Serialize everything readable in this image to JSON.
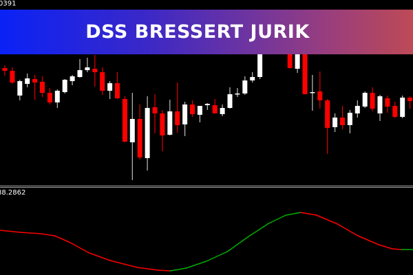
{
  "banner": {
    "title": "DSS BRESSERT JURIK"
  },
  "price_panel": {
    "top_label": "0391"
  },
  "indicator_panel": {
    "top_label": "88.2862"
  },
  "colors": {
    "bull_body": "#ffffff",
    "bear_body": "#ff0000",
    "bull_wick": "#c0c0c0",
    "bear_wick": "#e00000",
    "dss_up": "#00b000",
    "dss_down": "#ff0000",
    "background": "#000000"
  },
  "chart_data": [
    {
      "type": "candlestick",
      "title": "",
      "candles": [
        [
          201,
          205,
          190,
          197
        ],
        [
          197,
          202,
          178,
          180
        ],
        [
          161,
          184,
          154,
          182
        ],
        [
          178,
          193,
          173,
          186
        ],
        [
          185,
          191,
          155,
          180
        ],
        [
          181,
          189,
          159,
          165
        ],
        [
          165,
          172,
          148,
          151
        ],
        [
          151,
          170,
          143,
          168
        ],
        [
          166,
          185,
          164,
          184
        ],
        [
          182,
          191,
          176,
          189
        ],
        [
          188,
          214,
          187,
          198
        ],
        [
          198,
          216,
          195,
          202
        ],
        [
          200,
          220,
          174,
          195
        ],
        [
          195,
          202,
          162,
          168
        ],
        [
          168,
          182,
          156,
          179
        ],
        [
          179,
          195,
          156,
          157
        ],
        [
          156,
          160,
          93,
          94
        ],
        [
          93,
          165,
          38,
          127
        ],
        [
          127,
          148,
          68,
          71
        ],
        [
          70,
          160,
          52,
          143
        ],
        [
          144,
          163,
          106,
          135
        ],
        [
          135,
          140,
          80,
          103
        ],
        [
          104,
          155,
          103,
          138
        ],
        [
          138,
          180,
          107,
          118
        ],
        [
          119,
          152,
          102,
          148
        ],
        [
          148,
          154,
          130,
          134
        ],
        [
          133,
          146,
          122,
          146
        ],
        [
          147,
          150,
          140,
          149
        ],
        [
          147,
          156,
          135,
          135
        ],
        [
          134,
          148,
          131,
          143
        ],
        [
          143,
          173,
          142,
          163
        ],
        [
          164,
          172,
          159,
          164
        ],
        [
          164,
          189,
          162,
          183
        ],
        [
          183,
          195,
          180,
          188
        ],
        [
          188,
          236,
          185,
          230
        ],
        [
          230,
          256,
          228,
          250
        ],
        [
          250,
          270,
          245,
          265
        ],
        [
          265,
          272,
          235,
          238
        ],
        [
          238,
          245,
          200,
          201
        ],
        [
          200,
          245,
          194,
          240
        ],
        [
          235,
          240,
          163,
          163
        ],
        [
          165,
          191,
          139,
          166
        ],
        [
          167,
          196,
          142,
          154
        ],
        [
          154,
          156,
          76,
          114
        ],
        [
          115,
          135,
          108,
          129
        ],
        [
          129,
          146,
          112,
          118
        ],
        [
          118,
          140,
          106,
          136
        ],
        [
          135,
          154,
          129,
          146
        ],
        [
          145,
          167,
          143,
          165
        ],
        [
          165,
          173,
          138,
          142
        ],
        [
          135,
          162,
          124,
          160
        ],
        [
          157,
          161,
          136,
          145
        ],
        [
          146,
          152,
          128,
          130
        ],
        [
          130,
          161,
          128,
          158
        ],
        [
          158,
          160,
          142,
          153
        ]
      ]
    },
    {
      "type": "line",
      "title": "",
      "x": [
        0,
        2.75,
        5.5,
        7.3,
        9.2,
        11.9,
        14.7,
        18.3,
        21.1,
        22.7,
        24.8,
        27.5,
        30.3,
        33,
        35.8,
        38.1,
        40.1,
        42.2,
        45,
        47.7,
        50.5,
        52.3,
        53.5,
        55
      ],
      "values": [
        65,
        62,
        60,
        57,
        48,
        32,
        21,
        11,
        7,
        6,
        10,
        20,
        34,
        55,
        75,
        87,
        91,
        87,
        74,
        57,
        44,
        38,
        37,
        37
      ],
      "coloring": "green when rising, red when falling"
    }
  ]
}
